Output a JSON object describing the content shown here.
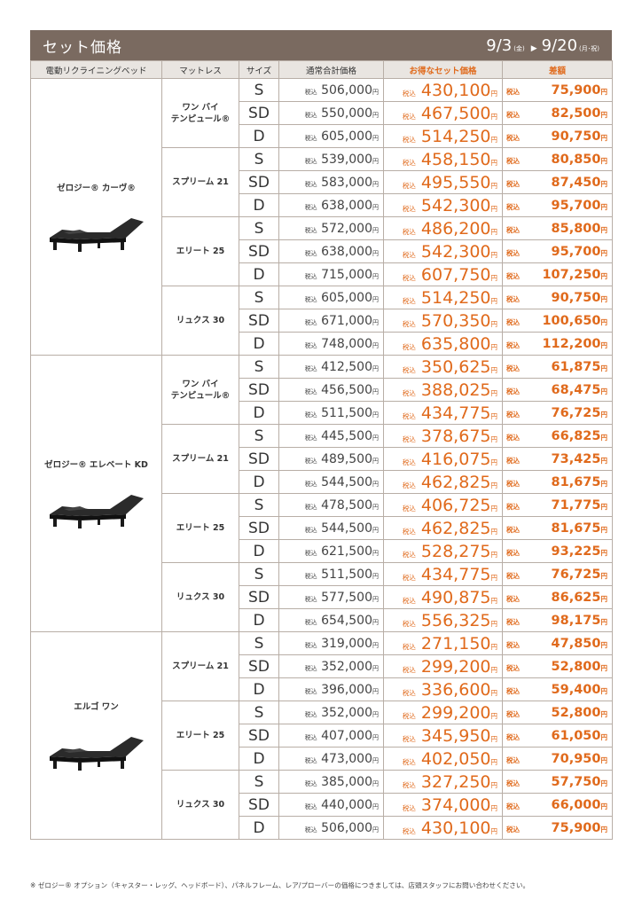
{
  "title": "セット価格",
  "period": {
    "start": "9/3",
    "start_day": "(金)",
    "end": "9/20",
    "end_day": "(月･祝)"
  },
  "headers": {
    "bed": "電動リクライニングベッド",
    "mattress": "マットレス",
    "size": "サイズ",
    "regular": "通常合計価格",
    "sale": "お得なセット価格",
    "diff": "差額"
  },
  "labels": {
    "tax": "税込",
    "yen": "円"
  },
  "beds": [
    {
      "name": "ゼロジー® カーヴ®",
      "icon": "adjustable-bed-icon",
      "mattresses": [
        {
          "name": "ワン バイ\nテンピュール®",
          "rows": [
            {
              "size": "S",
              "regular": "506,000",
              "sale": "430,100",
              "diff": "75,900"
            },
            {
              "size": "SD",
              "regular": "550,000",
              "sale": "467,500",
              "diff": "82,500"
            },
            {
              "size": "D",
              "regular": "605,000",
              "sale": "514,250",
              "diff": "90,750"
            }
          ]
        },
        {
          "name": "スプリーム 21",
          "rows": [
            {
              "size": "S",
              "regular": "539,000",
              "sale": "458,150",
              "diff": "80,850"
            },
            {
              "size": "SD",
              "regular": "583,000",
              "sale": "495,550",
              "diff": "87,450"
            },
            {
              "size": "D",
              "regular": "638,000",
              "sale": "542,300",
              "diff": "95,700"
            }
          ]
        },
        {
          "name": "エリート 25",
          "rows": [
            {
              "size": "S",
              "regular": "572,000",
              "sale": "486,200",
              "diff": "85,800"
            },
            {
              "size": "SD",
              "regular": "638,000",
              "sale": "542,300",
              "diff": "95,700"
            },
            {
              "size": "D",
              "regular": "715,000",
              "sale": "607,750",
              "diff": "107,250"
            }
          ]
        },
        {
          "name": "リュクス 30",
          "rows": [
            {
              "size": "S",
              "regular": "605,000",
              "sale": "514,250",
              "diff": "90,750"
            },
            {
              "size": "SD",
              "regular": "671,000",
              "sale": "570,350",
              "diff": "100,650"
            },
            {
              "size": "D",
              "regular": "748,000",
              "sale": "635,800",
              "diff": "112,200"
            }
          ]
        }
      ]
    },
    {
      "name": "ゼロジー® エレベート KD",
      "icon": "adjustable-bed-icon",
      "mattresses": [
        {
          "name": "ワン バイ\nテンピュール®",
          "rows": [
            {
              "size": "S",
              "regular": "412,500",
              "sale": "350,625",
              "diff": "61,875"
            },
            {
              "size": "SD",
              "regular": "456,500",
              "sale": "388,025",
              "diff": "68,475"
            },
            {
              "size": "D",
              "regular": "511,500",
              "sale": "434,775",
              "diff": "76,725"
            }
          ]
        },
        {
          "name": "スプリーム 21",
          "rows": [
            {
              "size": "S",
              "regular": "445,500",
              "sale": "378,675",
              "diff": "66,825"
            },
            {
              "size": "SD",
              "regular": "489,500",
              "sale": "416,075",
              "diff": "73,425"
            },
            {
              "size": "D",
              "regular": "544,500",
              "sale": "462,825",
              "diff": "81,675"
            }
          ]
        },
        {
          "name": "エリート 25",
          "rows": [
            {
              "size": "S",
              "regular": "478,500",
              "sale": "406,725",
              "diff": "71,775"
            },
            {
              "size": "SD",
              "regular": "544,500",
              "sale": "462,825",
              "diff": "81,675"
            },
            {
              "size": "D",
              "regular": "621,500",
              "sale": "528,275",
              "diff": "93,225"
            }
          ]
        },
        {
          "name": "リュクス 30",
          "rows": [
            {
              "size": "S",
              "regular": "511,500",
              "sale": "434,775",
              "diff": "76,725"
            },
            {
              "size": "SD",
              "regular": "577,500",
              "sale": "490,875",
              "diff": "86,625"
            },
            {
              "size": "D",
              "regular": "654,500",
              "sale": "556,325",
              "diff": "98,175"
            }
          ]
        }
      ]
    },
    {
      "name": "エルゴ ワン",
      "icon": "adjustable-bed-icon",
      "mattresses": [
        {
          "name": "スプリーム 21",
          "rows": [
            {
              "size": "S",
              "regular": "319,000",
              "sale": "271,150",
              "diff": "47,850"
            },
            {
              "size": "SD",
              "regular": "352,000",
              "sale": "299,200",
              "diff": "52,800"
            },
            {
              "size": "D",
              "regular": "396,000",
              "sale": "336,600",
              "diff": "59,400"
            }
          ]
        },
        {
          "name": "エリート 25",
          "rows": [
            {
              "size": "S",
              "regular": "352,000",
              "sale": "299,200",
              "diff": "52,800"
            },
            {
              "size": "SD",
              "regular": "407,000",
              "sale": "345,950",
              "diff": "61,050"
            },
            {
              "size": "D",
              "regular": "473,000",
              "sale": "402,050",
              "diff": "70,950"
            }
          ]
        },
        {
          "name": "リュクス 30",
          "rows": [
            {
              "size": "S",
              "regular": "385,000",
              "sale": "327,250",
              "diff": "57,750"
            },
            {
              "size": "SD",
              "regular": "440,000",
              "sale": "374,000",
              "diff": "66,000"
            },
            {
              "size": "D",
              "regular": "506,000",
              "sale": "430,100",
              "diff": "75,900"
            }
          ]
        }
      ]
    }
  ],
  "footnote": "※ ゼロジー® オプション（キャスター・レッグ、ヘッドボード）、パネルフレーム、レア/プローバーの価格につきましては、店頭スタッフにお問い合わせください。",
  "colors": {
    "header_bar": "#7a6a60",
    "accent": "#e06a1c",
    "grid": "#b8aea6",
    "header_row": "#e9e5e1"
  }
}
